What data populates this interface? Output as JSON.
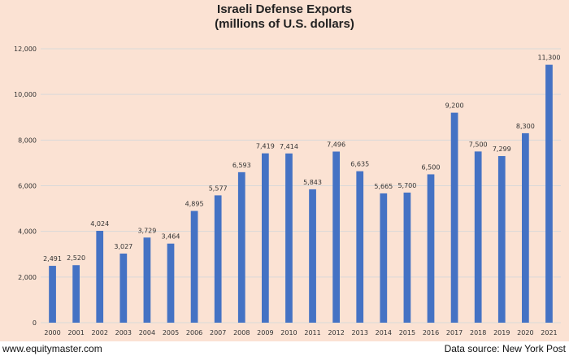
{
  "chart_data": {
    "type": "bar",
    "title": "Israeli Defense Exports",
    "subtitle": "(millions of U.S. dollars)",
    "xlabel": "",
    "ylabel": "",
    "ylim": [
      0,
      12000
    ],
    "yticks": [
      0,
      2000,
      4000,
      6000,
      8000,
      10000,
      12000
    ],
    "ytick_labels": [
      "0",
      "2,000",
      "4,000",
      "6,000",
      "8,000",
      "10,000",
      "12,000"
    ],
    "grid": true,
    "bar_color": "#4472c4",
    "categories": [
      "2000",
      "2001",
      "2002",
      "2003",
      "2004",
      "2005",
      "2006",
      "2007",
      "2008",
      "2009",
      "2010",
      "2011",
      "2012",
      "2013",
      "2014",
      "2015",
      "2016",
      "2017",
      "2018",
      "2019",
      "2020",
      "2021"
    ],
    "values": [
      2491,
      2520,
      4024,
      3027,
      3729,
      3464,
      4895,
      5577,
      6593,
      7419,
      7414,
      5843,
      7496,
      6635,
      5665,
      5700,
      6500,
      9200,
      7500,
      7299,
      8300,
      11300
    ],
    "data_labels": [
      "2,491",
      "2,520",
      "4,024",
      "3,027",
      "3,729",
      "3,464",
      "4,895",
      "5,577",
      "6,593",
      "7,419",
      "7,414",
      "5,843",
      "7,496",
      "6,635",
      "5,665",
      "5,700",
      "6,500",
      "9,200",
      "7,500",
      "7,299",
      "8,300",
      "11,300"
    ]
  },
  "footer": {
    "source_left": "www.equitymaster.com",
    "source_right": "Data source: New York Post"
  },
  "colors": {
    "background": "#fbe2d3",
    "bar": "#4472c4",
    "grid": "#d9d9d9"
  }
}
